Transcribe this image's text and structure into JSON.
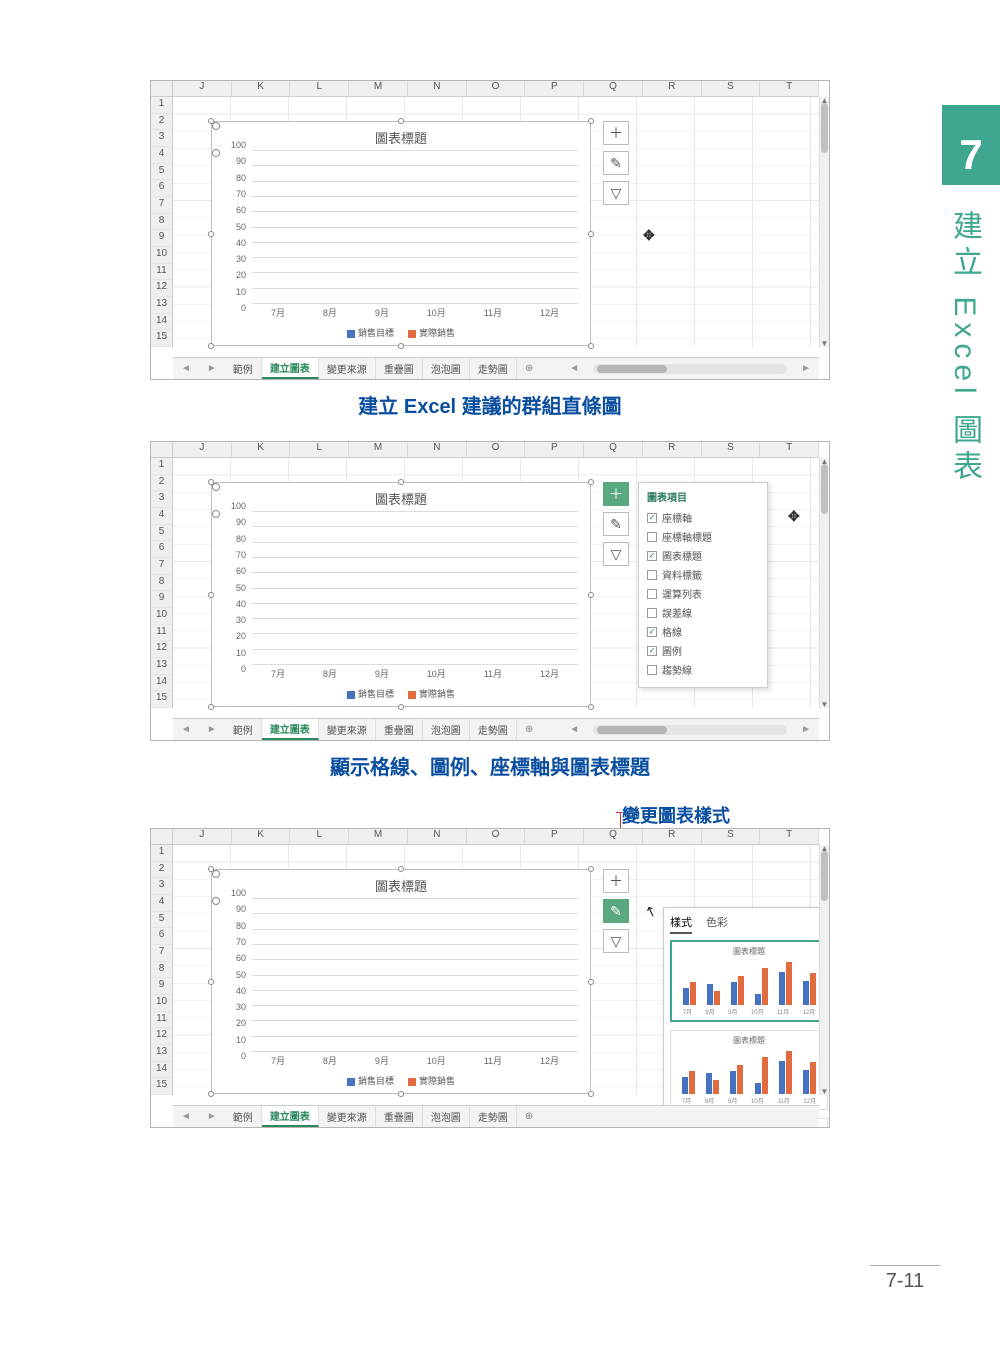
{
  "page": {
    "chapter_num": "7",
    "side_title": "建立 Excel 圖表",
    "page_num": "7-11"
  },
  "captions": {
    "c1": "建立 Excel 建議的群組直條圖",
    "c2": "顯示格線、圖例、座標軸與圖表標題",
    "c3": "變更圖表樣式"
  },
  "excel": {
    "columns": [
      "J",
      "K",
      "L",
      "M",
      "N",
      "O",
      "P",
      "Q",
      "R",
      "S",
      "T"
    ],
    "rows": [
      "1",
      "2",
      "3",
      "4",
      "5",
      "6",
      "7",
      "8",
      "9",
      "10",
      "11",
      "12",
      "13",
      "14",
      "15"
    ],
    "tabs": [
      "範例",
      "建立圖表",
      "變更來源",
      "重疊圖",
      "泡泡圖",
      "走勢圖"
    ],
    "active_tab_idx": 1,
    "add_tab": "⊕"
  },
  "chart": {
    "title": "圖表標題",
    "categories": [
      "7月",
      "8月",
      "9月",
      "10月",
      "11月",
      "12月"
    ],
    "series": [
      {
        "name": "銷售目標",
        "color": "#4673c0",
        "values": [
          38,
          45,
          50,
          25,
          72,
          53
        ]
      },
      {
        "name": "實際銷售",
        "color": "#e06b3e",
        "values": [
          50,
          30,
          63,
          80,
          93,
          70
        ]
      }
    ],
    "ymax": 100,
    "ytick": 10,
    "side_icons": [
      "＋",
      "✎",
      "▽"
    ]
  },
  "elements_popup": {
    "header": "圖表項目",
    "items": [
      {
        "label": "座標軸",
        "checked": true
      },
      {
        "label": "座標軸標題",
        "checked": false
      },
      {
        "label": "圖表標題",
        "checked": true
      },
      {
        "label": "資料標籤",
        "checked": false
      },
      {
        "label": "運算列表",
        "checked": false
      },
      {
        "label": "誤差線",
        "checked": false
      },
      {
        "label": "格線",
        "checked": true
      },
      {
        "label": "圖例",
        "checked": true
      },
      {
        "label": "趨勢線",
        "checked": false
      }
    ]
  },
  "style_panel": {
    "tabs": [
      "樣式",
      "色彩"
    ],
    "active_tab": 0,
    "thumb_title": "圖表標題",
    "thumb2_title": "圖表標題",
    "thumb3_title": "圖表標題"
  }
}
